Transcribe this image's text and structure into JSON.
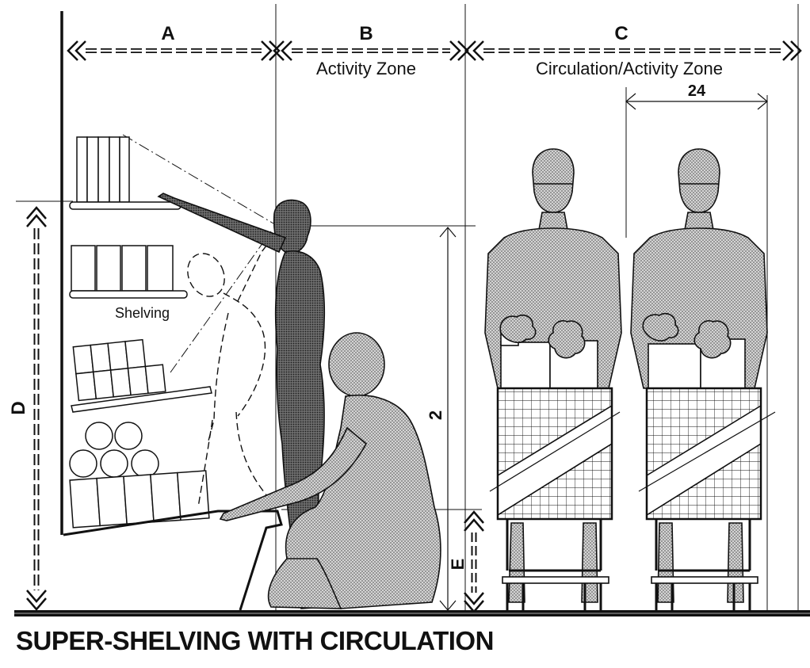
{
  "dimensions": {
    "A": {
      "letter": "A"
    },
    "B": {
      "letter": "B",
      "label": "Activity Zone"
    },
    "C": {
      "letter": "C",
      "label": "Circulation/Activity Zone"
    },
    "cart_width": "24",
    "D": {
      "letter": "D"
    },
    "eye_height": "2",
    "E": {
      "letter": "E"
    }
  },
  "labels": {
    "shelving": "Shelving"
  },
  "caption": "SUPER-SHELVING WITH CIRCULATION",
  "colors": {
    "ink": "#111111",
    "figure_fill": "#bdbdbd",
    "dark_figure_fill": "#555555",
    "paper": "#ffffff"
  }
}
